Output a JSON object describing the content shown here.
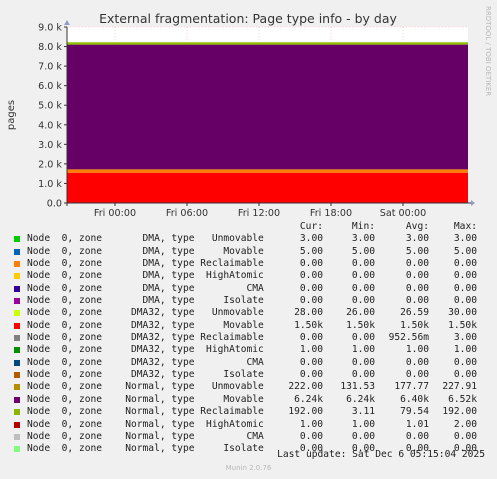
{
  "chart_data": {
    "type": "area",
    "title": "External fragmentation: Page type info - by day",
    "ylabel": "pages",
    "side_label": "RRDTOOL / TOBI OETIKER",
    "ylim": [
      0,
      9000
    ],
    "y_ticks": [
      {
        "value": 0,
        "label": "0.0"
      },
      {
        "value": 1000,
        "label": "1.0 k"
      },
      {
        "value": 2000,
        "label": "2.0 k"
      },
      {
        "value": 3000,
        "label": "3.0 k"
      },
      {
        "value": 4000,
        "label": "4.0 k"
      },
      {
        "value": 5000,
        "label": "5.0 k"
      },
      {
        "value": 6000,
        "label": "6.0 k"
      },
      {
        "value": 7000,
        "label": "7.0 k"
      },
      {
        "value": 8000,
        "label": "8.0 k"
      },
      {
        "value": 9000,
        "label": "9.0 k"
      }
    ],
    "x_ticks": [
      "Fri 00:00",
      "Fri 06:00",
      "Fri 12:00",
      "Fri 18:00",
      "Sat 00:00"
    ],
    "stack_bands": [
      {
        "series": "Node 0, zone Normal, type Unmovable",
        "color": "#ff0000",
        "low": 0,
        "high": 1550
      },
      {
        "series": "Node 0, zone DMA32, type Movable",
        "color": "#ff8000",
        "low": 1550,
        "high": 1720
      },
      {
        "series": "Node 0, zone Normal, type Movable",
        "color": "#660066",
        "low": 1720,
        "high": 8100
      },
      {
        "series": "Node 0, zone Normal, type Reclaimable",
        "color": "#8fbf00",
        "low": 8100,
        "high": 8220
      }
    ],
    "legend_header": {
      "cur": "Cur:",
      "min": "Min:",
      "avg": "Avg:",
      "max": "Max:"
    },
    "legend": [
      {
        "label": "Node  0, zone       DMA, type   Unmovable",
        "color": "#00cc00",
        "cur": "3.00",
        "min": "3.00",
        "avg": "3.00",
        "max": "3.00"
      },
      {
        "label": "Node  0, zone       DMA, type     Movable",
        "color": "#0066b3",
        "cur": "5.00",
        "min": "5.00",
        "avg": "5.00",
        "max": "5.00"
      },
      {
        "label": "Node  0, zone       DMA, type Reclaimable",
        "color": "#ff8000",
        "cur": "0.00",
        "min": "0.00",
        "avg": "0.00",
        "max": "0.00"
      },
      {
        "label": "Node  0, zone       DMA, type  HighAtomic",
        "color": "#ffcc00",
        "cur": "0.00",
        "min": "0.00",
        "avg": "0.00",
        "max": "0.00"
      },
      {
        "label": "Node  0, zone       DMA, type         CMA",
        "color": "#330099",
        "cur": "0.00",
        "min": "0.00",
        "avg": "0.00",
        "max": "0.00"
      },
      {
        "label": "Node  0, zone       DMA, type     Isolate",
        "color": "#990099",
        "cur": "0.00",
        "min": "0.00",
        "avg": "0.00",
        "max": "0.00"
      },
      {
        "label": "Node  0, zone     DMA32, type   Unmovable",
        "color": "#ccff00",
        "cur": "28.00",
        "min": "26.00",
        "avg": "26.59",
        "max": "30.00"
      },
      {
        "label": "Node  0, zone     DMA32, type     Movable",
        "color": "#ff0000",
        "cur": "1.50k",
        "min": "1.50k",
        "avg": "1.50k",
        "max": "1.50k"
      },
      {
        "label": "Node  0, zone     DMA32, type Reclaimable",
        "color": "#808080",
        "cur": "0.00",
        "min": "0.00",
        "avg": "952.56m",
        "max": "3.00"
      },
      {
        "label": "Node  0, zone     DMA32, type  HighAtomic",
        "color": "#008f00",
        "cur": "1.00",
        "min": "1.00",
        "avg": "1.00",
        "max": "1.00"
      },
      {
        "label": "Node  0, zone     DMA32, type         CMA",
        "color": "#00487d",
        "cur": "0.00",
        "min": "0.00",
        "avg": "0.00",
        "max": "0.00"
      },
      {
        "label": "Node  0, zone     DMA32, type     Isolate",
        "color": "#b35a00",
        "cur": "0.00",
        "min": "0.00",
        "avg": "0.00",
        "max": "0.00"
      },
      {
        "label": "Node  0, zone    Normal, type   Unmovable",
        "color": "#b38f00",
        "cur": "222.00",
        "min": "131.53",
        "avg": "177.77",
        "max": "227.91"
      },
      {
        "label": "Node  0, zone    Normal, type     Movable",
        "color": "#6b006b",
        "cur": "6.24k",
        "min": "6.24k",
        "avg": "6.40k",
        "max": "6.52k"
      },
      {
        "label": "Node  0, zone    Normal, type Reclaimable",
        "color": "#8fb300",
        "cur": "192.00",
        "min": "3.11",
        "avg": "79.54",
        "max": "192.00"
      },
      {
        "label": "Node  0, zone    Normal, type  HighAtomic",
        "color": "#b30000",
        "cur": "1.00",
        "min": "1.00",
        "avg": "1.01",
        "max": "2.00"
      },
      {
        "label": "Node  0, zone    Normal, type         CMA",
        "color": "#bebebe",
        "cur": "0.00",
        "min": "0.00",
        "avg": "0.00",
        "max": "0.00"
      },
      {
        "label": "Node  0, zone    Normal, type     Isolate",
        "color": "#80ff80",
        "cur": "0.00",
        "min": "0.00",
        "avg": "0.00",
        "max": "0.00"
      }
    ],
    "last_update": "Last update: Sat Dec  6 05:15:04 2025",
    "generator": "Munin 2.0.76"
  }
}
